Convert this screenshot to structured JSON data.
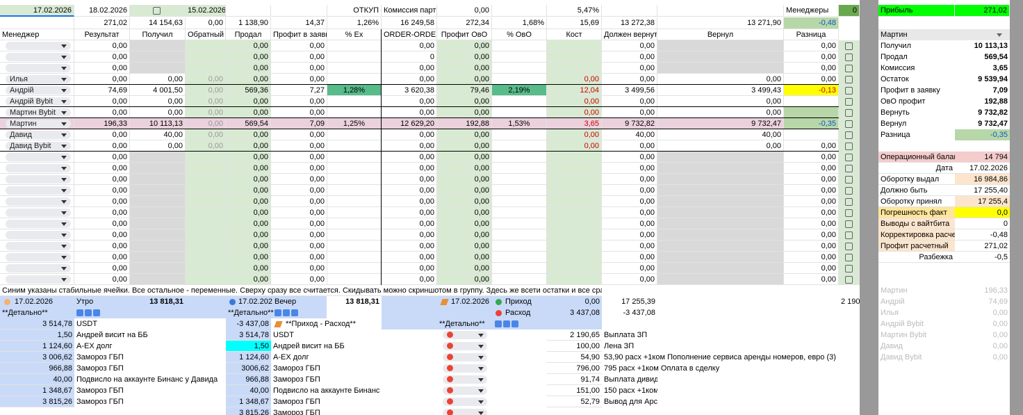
{
  "top_row": [
    "17.02.2026",
    "18.02.2026",
    null,
    "15.02.2026",
    null,
    null,
    "ОТКУП",
    "Комиссия партн",
    "0,00",
    null,
    "5,47%",
    null,
    null,
    "Менеджеры"
  ],
  "managers_count": "0",
  "profit_label": "Прибыль",
  "profit_value": "271,02",
  "totals_row": [
    null,
    "271,02",
    "14 154,63",
    "0,00",
    "1 138,90",
    "14,37",
    "1,26%",
    "16 249,58",
    "272,34",
    "1,68%",
    "15,69",
    "13 272,38",
    "13 271,90",
    "-0,48"
  ],
  "headers": [
    "Менеджер",
    "Результат",
    "Получил",
    "Обратный",
    "Продал",
    "Профит в заявку",
    "% Ex",
    "ORDER-ORDER",
    "Профит ОвО",
    "% ОвО",
    "Кост",
    "Должен вернуть",
    "Вернул",
    "Разница"
  ],
  "rows": [
    {
      "manager": null,
      "cells": [
        "0,00",
        null,
        null,
        "0,00",
        "0,00",
        null,
        "0,00",
        "0,00",
        null,
        null,
        "0,00",
        null,
        "0,00"
      ]
    },
    {
      "manager": null,
      "cells": [
        "0,00",
        null,
        null,
        "0,00",
        "0,00",
        null,
        "0",
        "0,00",
        null,
        null,
        "0,00",
        null,
        "0,00"
      ]
    },
    {
      "manager": null,
      "cells": [
        "0,00",
        null,
        null,
        "0,00",
        "0,00",
        null,
        "0,00",
        "0,00",
        null,
        null,
        "0,00",
        null,
        "0,00"
      ]
    },
    {
      "manager": "Илья",
      "cells": [
        "0,00",
        "0,00",
        "0,00",
        "0,00",
        "0,00",
        null,
        "0,00",
        "0,00",
        null,
        "0,00",
        "0,00",
        "0,00",
        "0,00"
      ]
    },
    {
      "manager": "Андрій",
      "cells": [
        "74,69",
        "4 001,50",
        "0,00",
        "569,36",
        "7,27",
        "1,28%",
        "3 620,38",
        "79,46",
        "2,19%",
        "12,04",
        "3 499,56",
        "3 499,43",
        "-0,13"
      ]
    },
    {
      "manager": "Андрій Bybit",
      "cells": [
        "0,00",
        "0,00",
        "0,00",
        "0,00",
        "0,00",
        null,
        "0,00",
        "0,00",
        null,
        "0,00",
        "0,00",
        "0,00",
        null
      ]
    },
    {
      "manager": "Мартин Bybit",
      "cells": [
        "0,00",
        "0,00",
        "0,00",
        "0,00",
        "0,00",
        null,
        "0,00",
        "0,00",
        null,
        "0,00",
        "0,00",
        "0,00",
        null
      ]
    },
    {
      "manager": "Мартин",
      "cells": [
        "196,33",
        "10 113,13",
        "0,00",
        "569,54",
        "7,09",
        "1,25%",
        "12 629,20",
        "192,88",
        "1,53%",
        "3,65",
        "9 732,82",
        "9 732,47",
        "-0,35"
      ]
    },
    {
      "manager": "Давид",
      "cells": [
        "0,00",
        "40,00",
        "0,00",
        "0,00",
        "0,00",
        null,
        "0,00",
        "0,00",
        null,
        "0,00",
        "40,00",
        "40,00",
        null
      ]
    },
    {
      "manager": "Давид Bybit",
      "cells": [
        "0,00",
        "0,00",
        "0,00",
        "0,00",
        "0,00",
        null,
        "0,00",
        "0,00",
        null,
        "0,00",
        "0,00",
        "0,00",
        "0,00"
      ]
    },
    {
      "manager": null,
      "cells": [
        "0,00",
        null,
        null,
        "0,00",
        "0,00",
        null,
        "0,00",
        "0,00",
        null,
        null,
        "0,00",
        null,
        "0,00"
      ]
    },
    {
      "manager": null,
      "cells": [
        "0,00",
        null,
        null,
        "0,00",
        "0,00",
        null,
        "0,00",
        "0,00",
        null,
        null,
        "0,00",
        null,
        "0,00"
      ]
    },
    {
      "manager": null,
      "cells": [
        "0,00",
        null,
        null,
        "0,00",
        "0,00",
        null,
        "0,00",
        "0,00",
        null,
        null,
        "0,00",
        null,
        "0,00"
      ]
    },
    {
      "manager": null,
      "cells": [
        "0,00",
        null,
        null,
        "0,00",
        "0,00",
        null,
        "0,00",
        "0,00",
        null,
        null,
        "0,00",
        null,
        "0,00"
      ]
    },
    {
      "manager": null,
      "cells": [
        "0,00",
        null,
        null,
        "0,00",
        "0,00",
        null,
        "0,00",
        "0,00",
        null,
        null,
        "0,00",
        null,
        "0,00"
      ]
    },
    {
      "manager": null,
      "cells": [
        "0,00",
        null,
        null,
        "0,00",
        "0,00",
        null,
        "0,00",
        "0,00",
        null,
        null,
        "0,00",
        null,
        "0,00"
      ]
    },
    {
      "manager": null,
      "cells": [
        "0,00",
        null,
        null,
        "0,00",
        "0,00",
        null,
        "0,00",
        "0,00",
        null,
        null,
        "0,00",
        null,
        "0,00"
      ]
    },
    {
      "manager": null,
      "cells": [
        "0,00",
        null,
        null,
        "0,00",
        "0,00",
        null,
        "0,00",
        "0,00",
        null,
        null,
        "0,00",
        null,
        "0,00"
      ]
    },
    {
      "manager": null,
      "cells": [
        "0,00",
        null,
        null,
        "0,00",
        "0,00",
        null,
        "0,00",
        "0,00",
        null,
        null,
        "0,00",
        null,
        "0,00"
      ]
    },
    {
      "manager": null,
      "cells": [
        "0,00",
        null,
        null,
        "0,00",
        "0,00",
        null,
        "0,00",
        "0,00",
        null,
        null,
        "0,00",
        null,
        "0,00"
      ]
    },
    {
      "manager": null,
      "cells": [
        "0,00",
        null,
        null,
        "0,00",
        "0,00",
        null,
        "0,00",
        "0,00",
        null,
        null,
        "0,00",
        null,
        "0,00"
      ]
    },
    {
      "manager": null,
      "cells": [
        "0,00",
        null,
        null,
        "0,00",
        "0,00",
        null,
        "0,00",
        "0,00",
        null,
        null,
        "0,00",
        null,
        "0,00"
      ]
    }
  ],
  "panel": {
    "selector": "Мартин",
    "items": [
      [
        "Получил",
        "10 113,13"
      ],
      [
        "Продал",
        "569,54"
      ],
      [
        "Комиссия",
        "3,65"
      ],
      [
        "Остаток",
        "9 539,94"
      ],
      [
        "Профит в заявку",
        "7,09"
      ],
      [
        "ОвО профит",
        "192,88"
      ],
      [
        "Вернуть",
        "9 732,82"
      ],
      [
        "Вернул",
        "9 732,47"
      ],
      [
        "Разница",
        "-0,35"
      ]
    ],
    "summary": [
      [
        "Операционный балан",
        "14 794"
      ],
      [
        "Дата",
        "17.02.2026"
      ],
      [
        "Оборотку выдал",
        "16 984,86"
      ],
      [
        "Должно быть",
        "17 255,40"
      ],
      [
        "Оборотку принял",
        "17 255,4"
      ],
      [
        "Погрешность факт",
        "0,0"
      ],
      [
        "Выводы с вайтбита",
        "0"
      ],
      [
        "Корректировка расчет",
        "-0,48"
      ],
      [
        "Профит расчетный",
        "271,02"
      ],
      [
        "Разбежка",
        "-0,5"
      ]
    ],
    "managers": [
      [
        "Мартин",
        "196,33"
      ],
      [
        "Андрій",
        "74,69"
      ],
      [
        "Илья",
        "0,00"
      ],
      [
        "Андрій Bybit",
        "0,00"
      ],
      [
        "Мартин Bybit",
        "0,00"
      ],
      [
        "Давид",
        "0,00"
      ],
      [
        "Давид Bybit",
        "0,00"
      ]
    ]
  },
  "note": "Синим указаны стабильные ячейки. Все остальное - переменные. Сверху сразу все считается. Скидывать можно скриншотом в группу. Здесь же всети остатки и все сразу счит",
  "morning": {
    "date": "17.02.2026",
    "label": "Утро",
    "total": "13 818,31",
    "detail": "**Детально**",
    "items": [
      [
        "3 514,78",
        "USDT"
      ],
      [
        "1,50",
        "Андрей висит на ББ"
      ],
      [
        "1 124,60",
        "A-EX долг"
      ],
      [
        "3 006,62",
        "Замороз ГБП"
      ],
      [
        "966,88",
        "Замороз ГБП"
      ],
      [
        "40,00",
        "Подвисло на аккаунте Бинанс у Давида"
      ],
      [
        "1 348,67",
        "Замороз ГБП"
      ],
      [
        "3 815,26",
        "Замороз ГБП"
      ]
    ]
  },
  "evening": {
    "date": "17.02.2026",
    "label": "Вечер",
    "total": "13 818,31",
    "detail": "**Детально**",
    "balance": "-3 437,08",
    "balance_label": "**Приход - Расход**",
    "items": [
      [
        "3 514,78",
        "USDT"
      ],
      [
        "1,50",
        "Андрей висит на ББ"
      ],
      [
        "1 124,60",
        "A-EX долг"
      ],
      [
        "3006,62",
        "Замороз ГБП"
      ],
      [
        "966,88",
        "Замороз ГБП"
      ],
      [
        "40,00",
        "Подвисло на аккаунте Бинанс у"
      ],
      [
        "1 348,67",
        "Замороз ГБП"
      ],
      [
        "3 815,26",
        "Замороз ГБП"
      ]
    ]
  },
  "flow": {
    "date": "17.02.2026",
    "income_label": "Приход",
    "income": "0,00",
    "expense_label": "Расход",
    "expense": "3 437,08",
    "detail": "**Детально**",
    "check_income": "17 255,39",
    "check_expense": "-3 437,08",
    "cut": "2 190,",
    "items": [
      [
        "2 190,65",
        "Выплата ЗП"
      ],
      [
        "100,00",
        "Лена ЗП"
      ],
      [
        "54,90",
        "53,90 расх +1ком Пополнение сервиса аренды номеров, евро (3)"
      ],
      [
        "796,00",
        "795 расх +1ком Оплата в сделку"
      ],
      [
        "91,74",
        "Выплата дивиде"
      ],
      [
        "151,00",
        "150 расх +1ком"
      ],
      [
        "52,79",
        "Вывод для Арс"
      ]
    ]
  }
}
